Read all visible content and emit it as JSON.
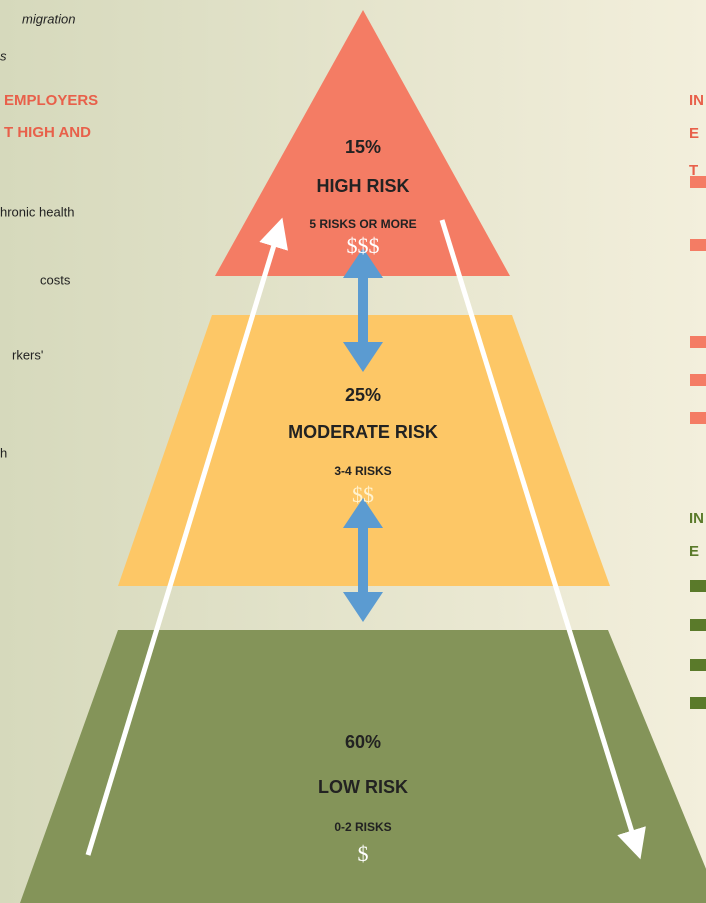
{
  "left_text": {
    "intro": [
      "migration",
      "s"
    ],
    "heading": [
      "EMPLOYERS",
      "T HIGH AND"
    ],
    "items": [
      "hronic health",
      "costs",
      "rkers'",
      "h"
    ]
  },
  "tiers": [
    {
      "percent": "15%",
      "label": "HIGH RISK",
      "risks": "5 RISKS OR MORE",
      "cost": "$$$"
    },
    {
      "percent": "25%",
      "label": "MODERATE RISK",
      "risks": "3-4 RISKS",
      "cost": "$$"
    },
    {
      "percent": "60%",
      "label": "LOW RISK",
      "risks": "0-2 RISKS",
      "cost": "$"
    }
  ],
  "right_text": {
    "heading_red": [
      "IN",
      "E",
      "T"
    ],
    "heading_green": [
      "IN",
      "E"
    ]
  }
}
